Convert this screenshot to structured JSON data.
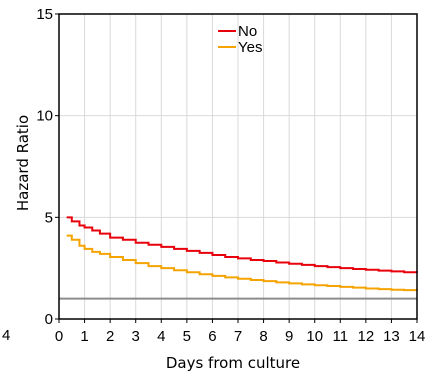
{
  "chart_data": {
    "type": "line",
    "title": "",
    "xlabel": "Days from culture",
    "ylabel": "Hazard Ratio",
    "xlim": [
      0,
      14
    ],
    "ylim": [
      0,
      15
    ],
    "x_ticks": [
      "0",
      "1",
      "2",
      "3",
      "4",
      "5",
      "6",
      "7",
      "8",
      "9",
      "10",
      "11",
      "12",
      "13",
      "14"
    ],
    "y_ticks": [
      "0",
      "5",
      "10",
      "15"
    ],
    "grid": true,
    "legend_position": "top-center",
    "reference_line": {
      "y": 1,
      "color": "#8c8c8c"
    },
    "left_edge_fragment": "4",
    "series": [
      {
        "name": "No",
        "color": "#e8000b",
        "x": [
          0.3,
          0.5,
          0.8,
          1.0,
          1.3,
          1.6,
          2.0,
          2.5,
          3.0,
          3.5,
          4.0,
          4.5,
          5.0,
          5.5,
          6.0,
          6.5,
          7.0,
          7.5,
          8.0,
          8.5,
          9.0,
          9.5,
          10.0,
          10.5,
          11.0,
          11.5,
          12.0,
          12.5,
          13.0,
          13.5,
          14.0
        ],
        "y": [
          5.0,
          4.8,
          4.6,
          4.5,
          4.35,
          4.2,
          4.0,
          3.9,
          3.75,
          3.65,
          3.55,
          3.45,
          3.35,
          3.25,
          3.15,
          3.05,
          2.98,
          2.9,
          2.85,
          2.78,
          2.72,
          2.66,
          2.6,
          2.55,
          2.5,
          2.46,
          2.42,
          2.38,
          2.34,
          2.3,
          2.28
        ]
      },
      {
        "name": "Yes",
        "color": "#f5a300",
        "x": [
          0.3,
          0.5,
          0.8,
          1.0,
          1.3,
          1.6,
          2.0,
          2.5,
          3.0,
          3.5,
          4.0,
          4.5,
          5.0,
          5.5,
          6.0,
          6.5,
          7.0,
          7.5,
          8.0,
          8.5,
          9.0,
          9.5,
          10.0,
          10.5,
          11.0,
          11.5,
          12.0,
          12.5,
          13.0,
          13.5,
          14.0
        ],
        "y": [
          4.1,
          3.9,
          3.6,
          3.45,
          3.3,
          3.2,
          3.05,
          2.9,
          2.75,
          2.6,
          2.5,
          2.4,
          2.3,
          2.2,
          2.12,
          2.05,
          1.98,
          1.92,
          1.86,
          1.8,
          1.75,
          1.7,
          1.66,
          1.62,
          1.58,
          1.54,
          1.5,
          1.47,
          1.44,
          1.42,
          1.4
        ]
      }
    ]
  }
}
